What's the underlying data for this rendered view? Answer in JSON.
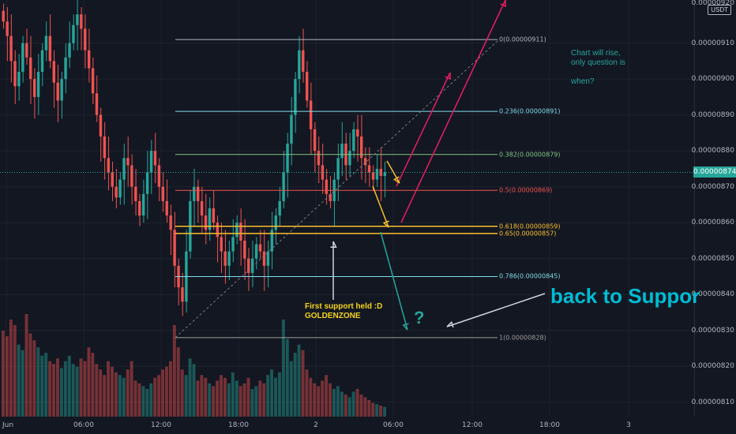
{
  "currency": "USDT",
  "current_price": "0.00000874",
  "colors": {
    "up": "#26a69a",
    "down": "#ef5350",
    "bg": "#131722"
  },
  "annotations": {
    "note_rise": "Chart will rise,\nonly question is\n\nwhen?",
    "golden_line1": "First support held :D",
    "golden_line2": "GOLDENZONE",
    "back_to_support": "back to Suppor",
    "question": "?"
  },
  "chart_data": {
    "type": "candlestick",
    "title": "",
    "y_ticks": [
      "0.00000910",
      "0.00000900",
      "0.00000890",
      "0.00000880",
      "0.00000870",
      "0.00000860",
      "0.00000850",
      "0.00000840",
      "0.00000830",
      "0.00000820",
      "0.00000810"
    ],
    "top_tick_partial": "0.00000920",
    "x_ticks": [
      "Jun",
      "06:00",
      "12:00",
      "18:00",
      "2",
      "06:00",
      "12:00",
      "18:00",
      "3"
    ],
    "ylim": [
      8.06e-06,
      9.22e-06
    ],
    "fib_levels": [
      {
        "ratio": "0",
        "price": 9.11e-06,
        "label": "0(0.00000911)",
        "color": "#b2b5be"
      },
      {
        "ratio": "0.236",
        "price": 8.91e-06,
        "label": "0.236(0.00000891)",
        "color": "#80deea"
      },
      {
        "ratio": "0.382",
        "price": 8.79e-06,
        "label": "0.382(0.00000879)",
        "color": "#81c784"
      },
      {
        "ratio": "0.5",
        "price": 8.69e-06,
        "label": "0.5(0.00000869)",
        "color": "#ef5350"
      },
      {
        "ratio": "0.618",
        "price": 8.59e-06,
        "label": "0.618(0.00000859)",
        "color": "#fbc02d"
      },
      {
        "ratio": "0.65",
        "price": 8.57e-06,
        "label": "0.65(0.00000857)",
        "color": "#fbc02d"
      },
      {
        "ratio": "0.786",
        "price": 8.45e-06,
        "label": "0.786(0.00000845)",
        "color": "#80deea"
      },
      {
        "ratio": "1",
        "price": 8.28e-06,
        "label": "1(0.00000828)",
        "color": "#9e9e9e"
      }
    ],
    "close_series": [
      916,
      912,
      905,
      898,
      902,
      910,
      906,
      900,
      895,
      902,
      908,
      912,
      905,
      899,
      894,
      900,
      906,
      910,
      915,
      918,
      914,
      908,
      903,
      896,
      890,
      884,
      878,
      874,
      870,
      867,
      872,
      878,
      876,
      870,
      866,
      862,
      868,
      874,
      880,
      876,
      870,
      866,
      862,
      858,
      848,
      842,
      838,
      852,
      866,
      870,
      866,
      862,
      858,
      864,
      860,
      856,
      852,
      848,
      852,
      856,
      860,
      855,
      850,
      846,
      850,
      854,
      852,
      848,
      852,
      858,
      862,
      866,
      874,
      882,
      890,
      900,
      908,
      902,
      894,
      886,
      880,
      876,
      872,
      868,
      866,
      872,
      878,
      882,
      876,
      880,
      886,
      884,
      878,
      876,
      874,
      872,
      875,
      873,
      874
    ],
    "volume": [
      62,
      58,
      70,
      66,
      52,
      48,
      74,
      60,
      55,
      50,
      44,
      46,
      40,
      38,
      42,
      35,
      40,
      44,
      38,
      36,
      42,
      40,
      50,
      46,
      38,
      34,
      30,
      40,
      36,
      32,
      30,
      28,
      34,
      40,
      26,
      24,
      22,
      20,
      24,
      28,
      30,
      34,
      36,
      40,
      66,
      50,
      34,
      30,
      42,
      38,
      26,
      30,
      28,
      24,
      22,
      26,
      30,
      28,
      24,
      32,
      26,
      22,
      24,
      28,
      20,
      22,
      26,
      24,
      30,
      34,
      28,
      32,
      70,
      56,
      40,
      46,
      52,
      48,
      34,
      28,
      24,
      22,
      26,
      30,
      24,
      20,
      22,
      18,
      16,
      14,
      18,
      20,
      16,
      14,
      12,
      10,
      9,
      8,
      7
    ]
  }
}
